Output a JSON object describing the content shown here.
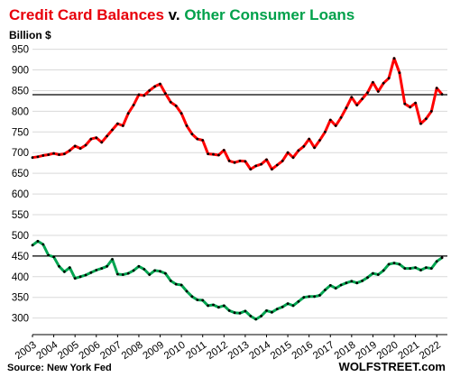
{
  "chart_data": {
    "type": "line",
    "title": {
      "part1": "Credit Card Balances",
      "part2": " v. ",
      "part3": "Other Consumer Loans"
    },
    "ylabel": "Billion $",
    "source": "Source: New York Fed",
    "brand": "WOLFSTREET.com",
    "ylim": [
      260,
      960
    ],
    "yticks": [
      300,
      350,
      400,
      450,
      500,
      550,
      600,
      650,
      700,
      750,
      800,
      850,
      900,
      950
    ],
    "xlim": [
      2003.0,
      2022.5
    ],
    "xticks": [
      "2003",
      "2004",
      "2005",
      "2006",
      "2007",
      "2008",
      "2009",
      "2010",
      "2011",
      "2012",
      "2013",
      "2014",
      "2015",
      "2016",
      "2017",
      "2018",
      "2019",
      "2020",
      "2021",
      "2022"
    ],
    "grid": "horizontal",
    "reference_lines": [
      {
        "value": 840,
        "color": "#000000"
      },
      {
        "value": 450,
        "color": "#000000"
      }
    ],
    "colors": {
      "credit_title": "#e8000b",
      "other_title": "#00a14b",
      "credit_line": "#ff0000",
      "other_line": "#00a550",
      "marker": "#000000",
      "grid": "#d9d9d9"
    },
    "series": [
      {
        "key": "credit",
        "values": [
          [
            2003.0,
            688
          ],
          [
            2003.25,
            690
          ],
          [
            2003.5,
            693
          ],
          [
            2003.75,
            695
          ],
          [
            2004.0,
            698
          ],
          [
            2004.25,
            695
          ],
          [
            2004.5,
            697
          ],
          [
            2004.75,
            705
          ],
          [
            2005.0,
            716
          ],
          [
            2005.25,
            710
          ],
          [
            2005.5,
            718
          ],
          [
            2005.75,
            733
          ],
          [
            2006.0,
            736
          ],
          [
            2006.25,
            725
          ],
          [
            2006.5,
            740
          ],
          [
            2006.75,
            755
          ],
          [
            2007.0,
            770
          ],
          [
            2007.25,
            765
          ],
          [
            2007.5,
            795
          ],
          [
            2007.75,
            815
          ],
          [
            2008.0,
            840
          ],
          [
            2008.25,
            838
          ],
          [
            2008.5,
            850
          ],
          [
            2008.75,
            860
          ],
          [
            2009.0,
            866
          ],
          [
            2009.25,
            843
          ],
          [
            2009.5,
            822
          ],
          [
            2009.75,
            813
          ],
          [
            2010.0,
            795
          ],
          [
            2010.25,
            765
          ],
          [
            2010.5,
            745
          ],
          [
            2010.75,
            733
          ],
          [
            2011.0,
            730
          ],
          [
            2011.25,
            697
          ],
          [
            2011.5,
            696
          ],
          [
            2011.75,
            694
          ],
          [
            2012.0,
            706
          ],
          [
            2012.25,
            680
          ],
          [
            2012.5,
            676
          ],
          [
            2012.75,
            680
          ],
          [
            2013.0,
            679
          ],
          [
            2013.25,
            660
          ],
          [
            2013.5,
            668
          ],
          [
            2013.75,
            672
          ],
          [
            2014.0,
            683
          ],
          [
            2014.25,
            660
          ],
          [
            2014.5,
            670
          ],
          [
            2014.75,
            680
          ],
          [
            2015.0,
            700
          ],
          [
            2015.25,
            688
          ],
          [
            2015.5,
            705
          ],
          [
            2015.75,
            715
          ],
          [
            2016.0,
            733
          ],
          [
            2016.25,
            712
          ],
          [
            2016.5,
            730
          ],
          [
            2016.75,
            750
          ],
          [
            2017.0,
            779
          ],
          [
            2017.25,
            765
          ],
          [
            2017.5,
            785
          ],
          [
            2017.75,
            808
          ],
          [
            2018.0,
            834
          ],
          [
            2018.25,
            815
          ],
          [
            2018.5,
            830
          ],
          [
            2018.75,
            845
          ],
          [
            2019.0,
            870
          ],
          [
            2019.25,
            848
          ],
          [
            2019.5,
            868
          ],
          [
            2019.75,
            880
          ],
          [
            2020.0,
            928
          ],
          [
            2020.25,
            893
          ],
          [
            2020.5,
            818
          ],
          [
            2020.75,
            810
          ],
          [
            2021.0,
            820
          ],
          [
            2021.25,
            770
          ],
          [
            2021.5,
            782
          ],
          [
            2021.75,
            800
          ],
          [
            2022.0,
            856
          ],
          [
            2022.25,
            841
          ]
        ]
      },
      {
        "key": "other",
        "values": [
          [
            2003.0,
            476
          ],
          [
            2003.25,
            486
          ],
          [
            2003.5,
            478
          ],
          [
            2003.75,
            452
          ],
          [
            2004.0,
            448
          ],
          [
            2004.25,
            425
          ],
          [
            2004.5,
            412
          ],
          [
            2004.75,
            422
          ],
          [
            2005.0,
            396
          ],
          [
            2005.25,
            400
          ],
          [
            2005.5,
            404
          ],
          [
            2005.75,
            410
          ],
          [
            2006.0,
            416
          ],
          [
            2006.25,
            420
          ],
          [
            2006.5,
            425
          ],
          [
            2006.75,
            442
          ],
          [
            2007.0,
            406
          ],
          [
            2007.25,
            405
          ],
          [
            2007.5,
            408
          ],
          [
            2007.75,
            415
          ],
          [
            2008.0,
            425
          ],
          [
            2008.25,
            418
          ],
          [
            2008.5,
            405
          ],
          [
            2008.75,
            415
          ],
          [
            2009.0,
            413
          ],
          [
            2009.25,
            408
          ],
          [
            2009.5,
            390
          ],
          [
            2009.75,
            382
          ],
          [
            2010.0,
            380
          ],
          [
            2010.25,
            365
          ],
          [
            2010.5,
            352
          ],
          [
            2010.75,
            344
          ],
          [
            2011.0,
            343
          ],
          [
            2011.25,
            330
          ],
          [
            2011.5,
            332
          ],
          [
            2011.75,
            326
          ],
          [
            2012.0,
            330
          ],
          [
            2012.25,
            318
          ],
          [
            2012.5,
            313
          ],
          [
            2012.75,
            312
          ],
          [
            2013.0,
            317
          ],
          [
            2013.25,
            305
          ],
          [
            2013.5,
            297
          ],
          [
            2013.75,
            305
          ],
          [
            2014.0,
            318
          ],
          [
            2014.25,
            314
          ],
          [
            2014.5,
            322
          ],
          [
            2014.75,
            327
          ],
          [
            2015.0,
            335
          ],
          [
            2015.25,
            330
          ],
          [
            2015.5,
            340
          ],
          [
            2015.75,
            350
          ],
          [
            2016.0,
            352
          ],
          [
            2016.25,
            352
          ],
          [
            2016.5,
            355
          ],
          [
            2016.75,
            368
          ],
          [
            2017.0,
            379
          ],
          [
            2017.25,
            372
          ],
          [
            2017.5,
            380
          ],
          [
            2017.75,
            385
          ],
          [
            2018.0,
            389
          ],
          [
            2018.25,
            385
          ],
          [
            2018.5,
            390
          ],
          [
            2018.75,
            398
          ],
          [
            2019.0,
            408
          ],
          [
            2019.25,
            405
          ],
          [
            2019.5,
            415
          ],
          [
            2019.75,
            430
          ],
          [
            2020.0,
            433
          ],
          [
            2020.25,
            430
          ],
          [
            2020.5,
            420
          ],
          [
            2020.75,
            420
          ],
          [
            2021.0,
            422
          ],
          [
            2021.25,
            416
          ],
          [
            2021.5,
            422
          ],
          [
            2021.75,
            420
          ],
          [
            2022.0,
            437
          ],
          [
            2022.25,
            446
          ]
        ]
      }
    ]
  }
}
